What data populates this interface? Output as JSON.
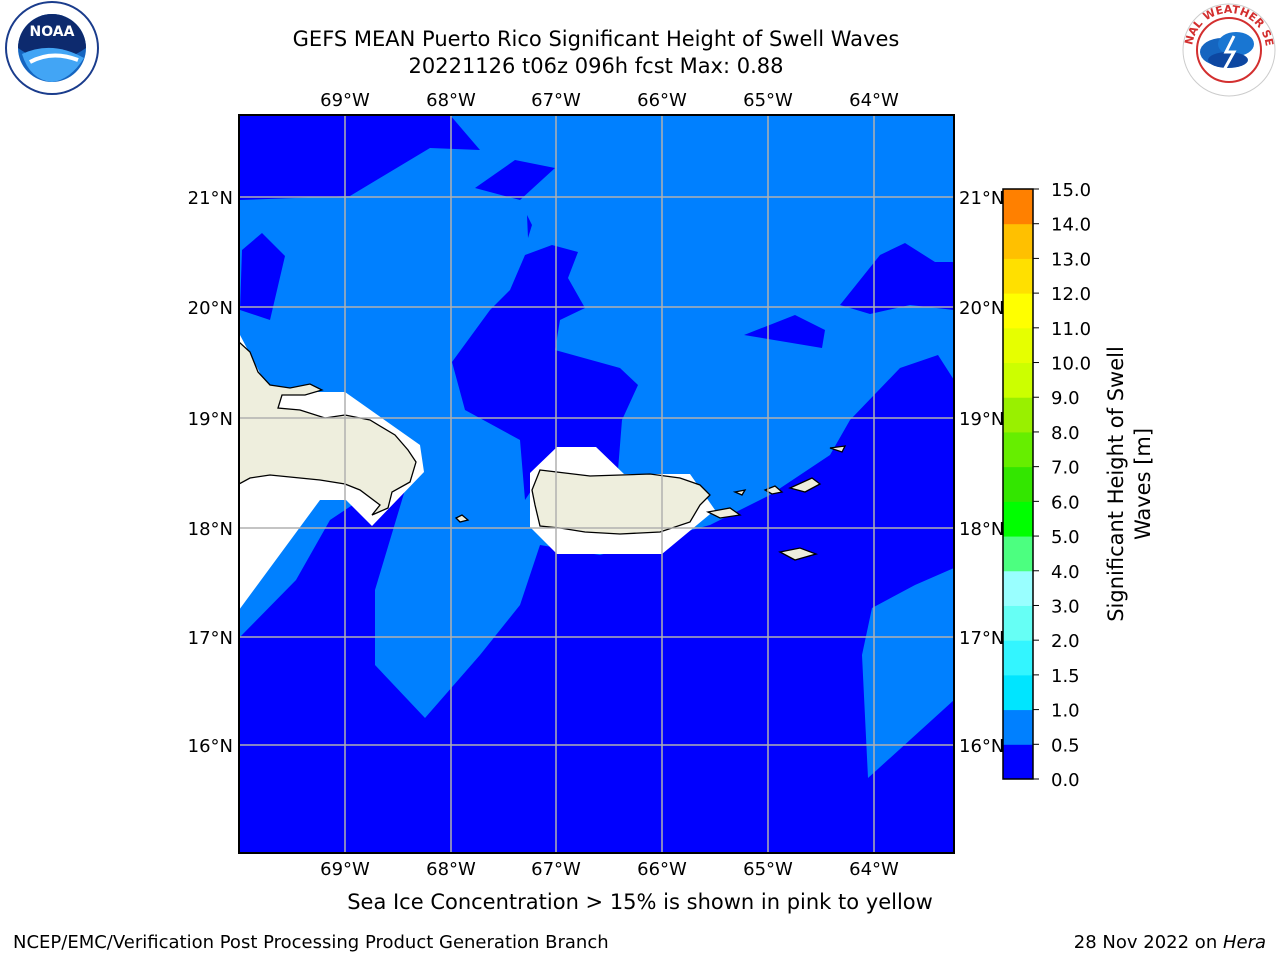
{
  "title": {
    "line1": "GEFS MEAN Puerto Rico Significant Height of Swell Waves",
    "line2": "20221126 t06z 096h fcst   Max: 0.88"
  },
  "logos": {
    "noara_icon": "noaa-logo",
    "noaa_text": "NOAA",
    "nws_text": "NATIONAL WEATHER SERVICE"
  },
  "map": {
    "lon_labels": [
      "69°W",
      "68°W",
      "67°W",
      "66°W",
      "65°W",
      "64°W"
    ],
    "lat_labels": [
      "21°N",
      "20°N",
      "19°N",
      "18°N",
      "17°N",
      "16°N"
    ],
    "colors": {
      "ocean_low": "#0000ff",
      "ocean_mid": "#0080ff",
      "land": "#eeeedd",
      "masked": "#ffffff",
      "grid": "#b0b0b0"
    }
  },
  "colorbar": {
    "label_line1": "Significant Height of Swell",
    "label_line2": "Waves [m]",
    "ticks": [
      "15.0",
      "14.0",
      "13.0",
      "12.0",
      "11.0",
      "10.0",
      "9.0",
      "8.0",
      "7.0",
      "6.0",
      "5.0",
      "4.0",
      "3.0",
      "2.0",
      "1.5",
      "1.0",
      "0.5",
      "0.0"
    ],
    "colors_bottom_to_top": [
      "#0000ff",
      "#0080ff",
      "#00e5ff",
      "#33f5ff",
      "#66fff5",
      "#99ffff",
      "#4cff80",
      "#00ff00",
      "#33e600",
      "#66ee00",
      "#99f000",
      "#ccff00",
      "#e6ff00",
      "#ffff00",
      "#ffe000",
      "#ffc000",
      "#ff8000",
      "#ff6000",
      "#ff4000",
      "#ff2000",
      "#ff0000"
    ]
  },
  "caption": "Sea Ice Concentration > 15% is shown in pink to yellow",
  "footer": {
    "left": "NCEP/EMC/Verification Post Processing Product Generation Branch",
    "right_prefix": "28 Nov 2022 on ",
    "right_host": "Hera"
  }
}
